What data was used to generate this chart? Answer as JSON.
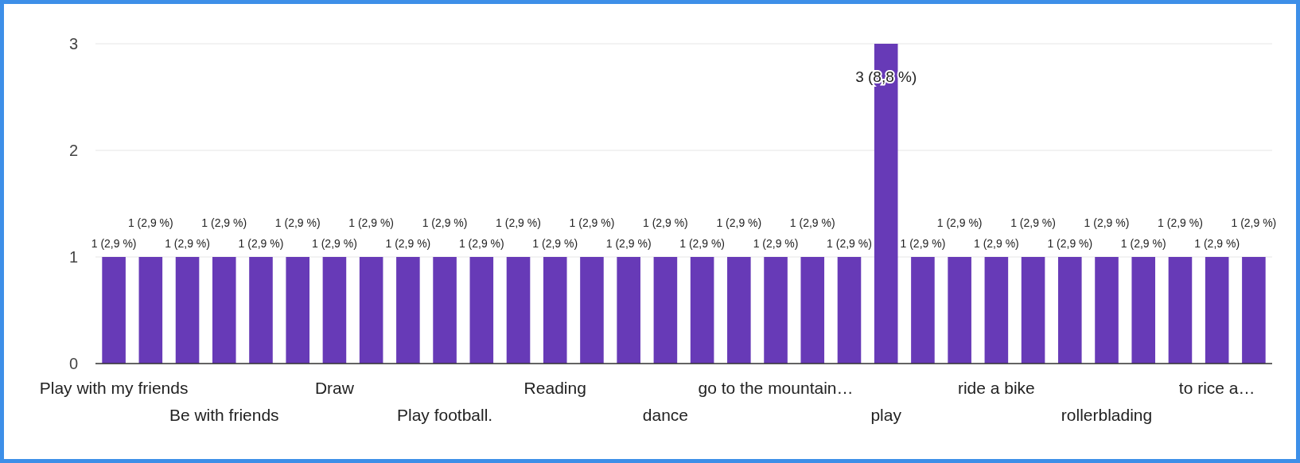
{
  "chart_data": {
    "type": "bar",
    "categories": [
      "Play with my friends",
      null,
      null,
      "Be with friends",
      null,
      null,
      "Draw",
      null,
      null,
      "Play football.",
      null,
      null,
      "Reading",
      null,
      null,
      "dance",
      null,
      null,
      "go to the mountain…",
      null,
      null,
      "play",
      null,
      null,
      "ride a bike",
      null,
      null,
      "rollerblading",
      null,
      null,
      "to rice a…",
      null
    ],
    "values": [
      1,
      1,
      1,
      1,
      1,
      1,
      1,
      1,
      1,
      1,
      1,
      1,
      1,
      1,
      1,
      1,
      1,
      1,
      1,
      1,
      1,
      3,
      1,
      1,
      1,
      1,
      1,
      1,
      1,
      1,
      1,
      1
    ],
    "value_labels": [
      "1 (2,9 %)",
      "1 (2,9 %)",
      "1 (2,9 %)",
      "1 (2,9 %)",
      "1 (2,9 %)",
      "1 (2,9 %)",
      "1 (2,9 %)",
      "1 (2,9 %)",
      "1 (2,9 %)",
      "1 (2,9 %)",
      "1 (2,9 %)",
      "1 (2,9 %)",
      "1 (2,9 %)",
      "1 (2,9 %)",
      "1 (2,9 %)",
      "1 (2,9 %)",
      "1 (2,9 %)",
      "1 (2,9 %)",
      "1 (2,9 %)",
      "1 (2,9 %)",
      "1 (2,9 %)",
      "3 (8,8 %)",
      "1 (2,9 %)",
      "1 (2,9 %)",
      "1 (2,9 %)",
      "1 (2,9 %)",
      "1 (2,9 %)",
      "1 (2,9 %)",
      "1 (2,9 %)",
      "1 (2,9 %)",
      "1 (2,9 %)",
      "1 (2,9 %)"
    ],
    "color": "#673ab7",
    "ylim": [
      0,
      3
    ],
    "yticks": [
      0,
      1,
      2,
      3
    ],
    "grid": true
  }
}
